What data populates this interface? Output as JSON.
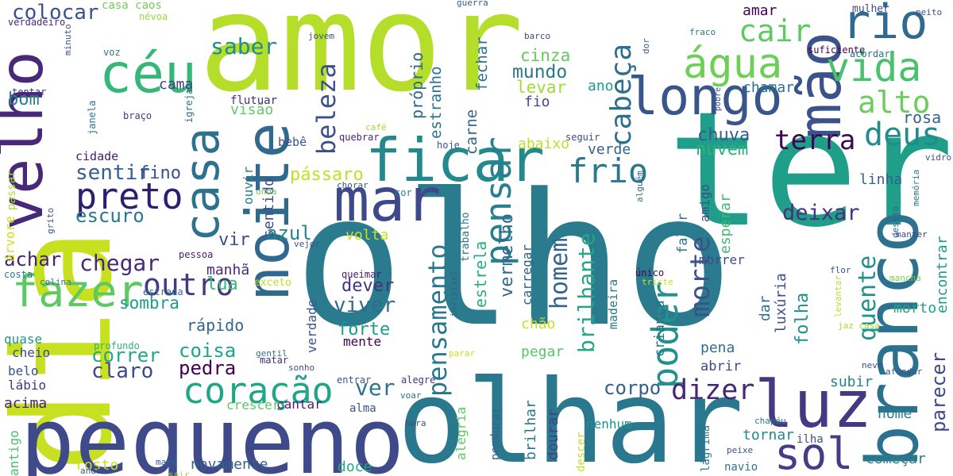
{
  "words": [
    {
      "text": "olho",
      "color": "#2a7b8e"
    },
    {
      "text": "amor",
      "color": "#b5de2b"
    },
    {
      "text": "ter",
      "color": "#1f9e89"
    },
    {
      "text": "dia",
      "color": "#c7e020"
    },
    {
      "text": "olhar",
      "color": "#2a788e"
    },
    {
      "text": "pequeno",
      "color": "#3e4a89"
    },
    {
      "text": "velho",
      "color": "#482878"
    },
    {
      "text": "noite",
      "color": "#31688e"
    },
    {
      "text": "branco",
      "color": "#2c728e"
    },
    {
      "text": "mão",
      "color": "#3b528b"
    },
    {
      "text": "céu",
      "color": "#35b779"
    },
    {
      "text": "ficar",
      "color": "#23898e"
    },
    {
      "text": "mar",
      "color": "#3e4989"
    },
    {
      "text": "luz",
      "color": "#443983"
    },
    {
      "text": "longo",
      "color": "#39568c"
    },
    {
      "text": "casa",
      "color": "#2c728e"
    },
    {
      "text": "água",
      "color": "#6ece58"
    },
    {
      "text": "rio",
      "color": "#306a8e"
    },
    {
      "text": "fazer",
      "color": "#5ec962"
    },
    {
      "text": "sol",
      "color": "#433e85"
    },
    {
      "text": "vida",
      "color": "#4ac16d"
    },
    {
      "text": "coração",
      "color": "#21a685"
    },
    {
      "text": "pensar",
      "color": "#27808e"
    },
    {
      "text": "poder",
      "color": "#21918c"
    },
    {
      "text": "dizer",
      "color": "#482677"
    },
    {
      "text": "preto",
      "color": "#2d1e72"
    },
    {
      "text": "frio",
      "color": "#2a788e"
    },
    {
      "text": "deus",
      "color": "#238a8d"
    },
    {
      "text": "cabeça",
      "color": "#2e6e8e"
    },
    {
      "text": "beleza",
      "color": "#3b528b"
    },
    {
      "text": "alto",
      "color": "#6ccd5a"
    },
    {
      "text": "homem",
      "color": "#32658e"
    },
    {
      "text": "terra",
      "color": "#3e0751"
    },
    {
      "text": "cair",
      "color": "#5ec962"
    },
    {
      "text": "pensamento",
      "color": "#2a788e"
    },
    {
      "text": "morte",
      "color": "#3b528b"
    },
    {
      "text": "brilhante",
      "color": "#22a884"
    },
    {
      "text": "outro",
      "color": "#443a83"
    },
    {
      "text": "quente",
      "color": "#21918c"
    },
    {
      "text": "parecer",
      "color": "#3f4788"
    },
    {
      "text": "ver",
      "color": "#2c728e"
    },
    {
      "text": "saber",
      "color": "#228d8d"
    },
    {
      "text": "colocar",
      "color": "#3b528b"
    },
    {
      "text": "sentir",
      "color": "#35608d"
    },
    {
      "text": "escuro",
      "color": "#2a788e"
    },
    {
      "text": "chegar",
      "color": "#482878"
    },
    {
      "text": "deixar",
      "color": "#46327e"
    },
    {
      "text": "corpo",
      "color": "#355f8d"
    },
    {
      "text": "sentido",
      "color": "#3e4c8a"
    },
    {
      "text": "vir",
      "color": "#3e4c8a"
    },
    {
      "text": "azul",
      "color": "#25838e"
    },
    {
      "text": "achar",
      "color": "#481f70"
    },
    {
      "text": "correr",
      "color": "#22a884"
    },
    {
      "text": "claro",
      "color": "#3e4989"
    },
    {
      "text": "coisa",
      "color": "#20a386"
    },
    {
      "text": "pedra",
      "color": "#440154"
    },
    {
      "text": "rápido",
      "color": "#31688e"
    },
    {
      "text": "viver",
      "color": "#2f6b8e"
    },
    {
      "text": "dever",
      "color": "#46327e"
    },
    {
      "text": "forte",
      "color": "#1e9c89"
    },
    {
      "text": "volta",
      "color": "#c8e020"
    },
    {
      "text": "pássaro",
      "color": "#c2df23"
    },
    {
      "text": "chuva",
      "color": "#365c8d"
    },
    {
      "text": "nuvem",
      "color": "#2db27d"
    },
    {
      "text": "verde",
      "color": "#33638d"
    },
    {
      "text": "abaixo",
      "color": "#c0df25"
    },
    {
      "text": "rosa",
      "color": "#32658e"
    },
    {
      "text": "vermelho",
      "color": "#31688e"
    },
    {
      "text": "estrela",
      "color": "#27ad81"
    },
    {
      "text": "carne",
      "color": "#31688e"
    },
    {
      "text": "fechar",
      "color": "#2c728e"
    },
    {
      "text": "mundo",
      "color": "#2a788e"
    },
    {
      "text": "levar",
      "color": "#a2da37"
    },
    {
      "text": "cinza",
      "color": "#65cb5e"
    },
    {
      "text": "fio",
      "color": "#3e4a89"
    },
    {
      "text": "próprio",
      "color": "#31688e"
    },
    {
      "text": "estranho",
      "color": "#2c728e"
    },
    {
      "text": "amar",
      "color": "#440154"
    },
    {
      "text": "chamar",
      "color": "#2c728e"
    },
    {
      "text": "ano",
      "color": "#1f998a"
    },
    {
      "text": "cama",
      "color": "#424086"
    },
    {
      "text": "bom",
      "color": "#277f8e"
    },
    {
      "text": "visão",
      "color": "#5ec962"
    },
    {
      "text": "flutuar",
      "color": "#472c7a"
    },
    {
      "text": "fino",
      "color": "#3b518b"
    },
    {
      "text": "cidade",
      "color": "#482071"
    },
    {
      "text": "bebê",
      "color": "#3b528b"
    },
    {
      "text": "lua",
      "color": "#3aba76"
    },
    {
      "text": "manhã",
      "color": "#482979"
    },
    {
      "text": "sombra",
      "color": "#1e9b8a"
    },
    {
      "text": "ouvir",
      "color": "#26828e"
    },
    {
      "text": "verdade",
      "color": "#3a538b"
    },
    {
      "text": "mente",
      "color": "#440154"
    },
    {
      "text": "chão",
      "color": "#cae11f"
    },
    {
      "text": "pegar",
      "color": "#56c667"
    },
    {
      "text": "alegria",
      "color": "#5ec962"
    },
    {
      "text": "brilhar",
      "color": "#2a788e"
    },
    {
      "text": "dourar",
      "color": "#424086"
    },
    {
      "text": "pendurar",
      "color": "#34608d"
    },
    {
      "text": "carregar",
      "color": "#34608d"
    },
    {
      "text": "criança",
      "color": "#2e6f8e"
    },
    {
      "text": "dar",
      "color": "#2b748e"
    },
    {
      "text": "luxúria",
      "color": "#3c4f8a"
    },
    {
      "text": "folha",
      "color": "#21918c"
    },
    {
      "text": "morto",
      "color": "#20a386"
    },
    {
      "text": "amigo",
      "color": "#3d4d8a"
    },
    {
      "text": "esperar",
      "color": "#3dbc74"
    },
    {
      "text": "falar",
      "color": "#2a788e"
    },
    {
      "text": "morrer",
      "color": "#3d4d8a"
    },
    {
      "text": "pena",
      "color": "#2e6f8e"
    },
    {
      "text": "abrir",
      "color": "#3e4989"
    },
    {
      "text": "subir",
      "color": "#26828e"
    },
    {
      "text": "nome",
      "color": "#26818e"
    },
    {
      "text": "tornar",
      "color": "#24878e"
    },
    {
      "text": "novamente",
      "color": "#34608d"
    },
    {
      "text": "começar",
      "color": "#26818e"
    },
    {
      "text": "encontrar",
      "color": "#1e9b8a"
    },
    {
      "text": "linha",
      "color": "#355f8d"
    },
    {
      "text": "doce",
      "color": "#25ab82"
    },
    {
      "text": "rosto",
      "color": "#c8e020"
    },
    {
      "text": "acima",
      "color": "#482475"
    },
    {
      "text": "nenhum",
      "color": "#20928c"
    },
    {
      "text": "cantar",
      "color": "#481b6d"
    },
    {
      "text": "crescer",
      "color": "#5cc863"
    },
    {
      "text": "alma",
      "color": "#3b528b"
    },
    {
      "text": "quase",
      "color": "#1f9a8a"
    },
    {
      "text": "cheio",
      "color": "#3e4989"
    },
    {
      "text": "belo",
      "color": "#3b528b"
    },
    {
      "text": "lábio",
      "color": "#453781"
    },
    {
      "text": "colocar2",
      "color": "#3b528b"
    },
    {
      "text": "casa caos",
      "color": "#6ece58"
    },
    {
      "text": "névoa",
      "color": "#9bd93c"
    },
    {
      "text": "verdadeiro",
      "color": "#482878"
    },
    {
      "text": "voz",
      "color": "#2a788e"
    },
    {
      "text": "igreja",
      "color": "#2c728e"
    },
    {
      "text": "janela",
      "color": "#2e6f8e"
    },
    {
      "text": "braço",
      "color": "#443983"
    },
    {
      "text": "minuto",
      "color": "#3b528b"
    },
    {
      "text": "tentar",
      "color": "#46307e"
    },
    {
      "text": "passar",
      "color": "#a8db34"
    },
    {
      "text": "árvore",
      "color": "#cde11d"
    },
    {
      "text": "grito",
      "color": "#3b528b"
    },
    {
      "text": "antigo",
      "color": "#4ac16d"
    },
    {
      "text": "costa",
      "color": "#2a788e"
    },
    {
      "text": "colina",
      "color": "#2b758e"
    },
    {
      "text": "estrada",
      "color": "#2f6c8e"
    },
    {
      "text": "pessoa",
      "color": "#481c6e"
    },
    {
      "text": "vejor",
      "color": "#3b528b"
    },
    {
      "text": "exceto",
      "color": "#c2df23"
    },
    {
      "text": "profundo",
      "color": "#2db27d"
    },
    {
      "text": "gentil",
      "color": "#2c728e"
    },
    {
      "text": "matar",
      "color": "#472a7a"
    },
    {
      "text": "sonho",
      "color": "#3e4c8a"
    },
    {
      "text": "sair",
      "color": "#a5db36"
    },
    {
      "text": "maré",
      "color": "#33638d"
    },
    {
      "text": "andar",
      "color": "#3b528b"
    },
    {
      "text": "entrar",
      "color": "#3b528b"
    },
    {
      "text": "alegre",
      "color": "#46337e"
    },
    {
      "text": "voar",
      "color": "#2f6c8e"
    },
    {
      "text": "hora",
      "color": "#3e4c8a"
    },
    {
      "text": "invisível",
      "color": "#34608d"
    },
    {
      "text": "trabalho",
      "color": "#2c728e"
    },
    {
      "text": "queimar",
      "color": "#481769"
    },
    {
      "text": "chorar",
      "color": "#3b528b"
    },
    {
      "text": "cor",
      "color": "#277e8e"
    },
    {
      "text": "onda",
      "color": "#6ece58"
    },
    {
      "text": "quebrar",
      "color": "#482677"
    },
    {
      "text": "hoje",
      "color": "#3a538b"
    },
    {
      "text": "café",
      "color": "#a5db36"
    },
    {
      "text": "guerra",
      "color": "#365d8d"
    },
    {
      "text": "barco",
      "color": "#3e4989"
    },
    {
      "text": "jovem",
      "color": "#3b528b"
    },
    {
      "text": "único",
      "color": "#440154"
    },
    {
      "text": "triste",
      "color": "#c5e021"
    },
    {
      "text": "alguém",
      "color": "#31688e"
    },
    {
      "text": "seguir",
      "color": "#3e4989"
    },
    {
      "text": "fraco",
      "color": "#2a788e"
    },
    {
      "text": "dor",
      "color": "#38588c"
    },
    {
      "text": "pobre",
      "color": "#3b528b"
    },
    {
      "text": "suficiente",
      "color": "#440154"
    },
    {
      "text": "acordar",
      "color": "#2c728e"
    },
    {
      "text": "mulher",
      "color": "#3e4989"
    },
    {
      "text": "peito",
      "color": "#3b528b"
    },
    {
      "text": "vidro",
      "color": "#3b528b"
    },
    {
      "text": "memória",
      "color": "#2c728e"
    },
    {
      "text": "desejo",
      "color": "#34608d"
    },
    {
      "text": "manter",
      "color": "#3e4989"
    },
    {
      "text": "flor",
      "color": "#3b528b"
    },
    {
      "text": "mancha",
      "color": "#7ad151"
    },
    {
      "text": "levantar",
      "color": "#b8de29"
    },
    {
      "text": "jaz casa",
      "color": "#a2da37"
    },
    {
      "text": "neve",
      "color": "#3b528b"
    },
    {
      "text": "afundar",
      "color": "#3b528b"
    },
    {
      "text": "chapéu",
      "color": "#2a788e"
    },
    {
      "text": "peixe",
      "color": "#3b528b"
    },
    {
      "text": "navio",
      "color": "#2a788e"
    },
    {
      "text": "ilha",
      "color": "#3b528b"
    },
    {
      "text": "lágrima",
      "color": "#2a788e"
    },
    {
      "text": "descer",
      "color": "#c2df23"
    },
    {
      "text": "parar",
      "color": "#c8e020"
    },
    {
      "text": "madeira",
      "color": "#2a788e"
    }
  ]
}
